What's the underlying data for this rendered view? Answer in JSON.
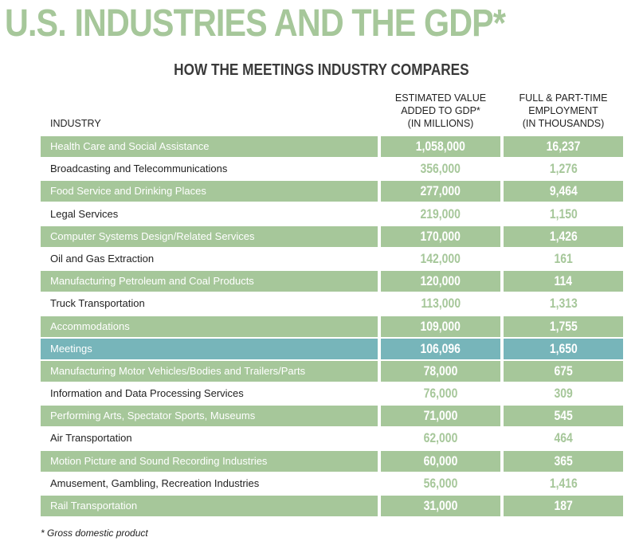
{
  "title": "U.S. INDUSTRIES AND THE GDP*",
  "subtitle": "HOW THE MEETINGS INDUSTRY COMPARES",
  "colors": {
    "shade": "#a6c79a",
    "highlight": "#77b5ba",
    "accent": "#a6c79a"
  },
  "headers": {
    "industry": "INDUSTRY",
    "gdp_line1": "ESTIMATED VALUE",
    "gdp_line2": "ADDED TO GDP*",
    "gdp_line3": "(IN MILLIONS)",
    "emp_line1": "FULL & PART-TIME",
    "emp_line2": "EMPLOYMENT",
    "emp_line3": "(IN THOUSANDS)"
  },
  "rows": [
    {
      "industry": "Health Care and Social Assistance",
      "gdp": "1,058,000",
      "employment": "16,237"
    },
    {
      "industry": "Broadcasting and Telecommunications",
      "gdp": "356,000",
      "employment": "1,276"
    },
    {
      "industry": "Food Service and Drinking Places",
      "gdp": "277,000",
      "employment": "9,464"
    },
    {
      "industry": "Legal Services",
      "gdp": "219,000",
      "employment": "1,150"
    },
    {
      "industry": "Computer Systems Design/Related Services",
      "gdp": "170,000",
      "employment": "1,426"
    },
    {
      "industry": "Oil and Gas Extraction",
      "gdp": "142,000",
      "employment": "161"
    },
    {
      "industry": "Manufacturing Petroleum and Coal Products",
      "gdp": "120,000",
      "employment": "114"
    },
    {
      "industry": "Truck Transportation",
      "gdp": "113,000",
      "employment": "1,313"
    },
    {
      "industry": "Accommodations",
      "gdp": "109,000",
      "employment": "1,755"
    },
    {
      "industry": "Meetings",
      "gdp": "106,096",
      "employment": "1,650"
    },
    {
      "industry": "Manufacturing Motor Vehicles/Bodies and Trailers/Parts",
      "gdp": "78,000",
      "employment": "675"
    },
    {
      "industry": "Information and Data Processing Services",
      "gdp": "76,000",
      "employment": "309"
    },
    {
      "industry": "Performing Arts, Spectator Sports, Museums",
      "gdp": "71,000",
      "employment": "545"
    },
    {
      "industry": "Air Transportation",
      "gdp": "62,000",
      "employment": "464"
    },
    {
      "industry": "Motion Picture and Sound Recording Industries",
      "gdp": "60,000",
      "employment": "365"
    },
    {
      "industry": "Amusement, Gambling, Recreation Industries",
      "gdp": "56,000",
      "employment": "1,416"
    },
    {
      "industry": "Rail Transportation",
      "gdp": "31,000",
      "employment": "187"
    }
  ],
  "footnote": "* Gross domestic product"
}
